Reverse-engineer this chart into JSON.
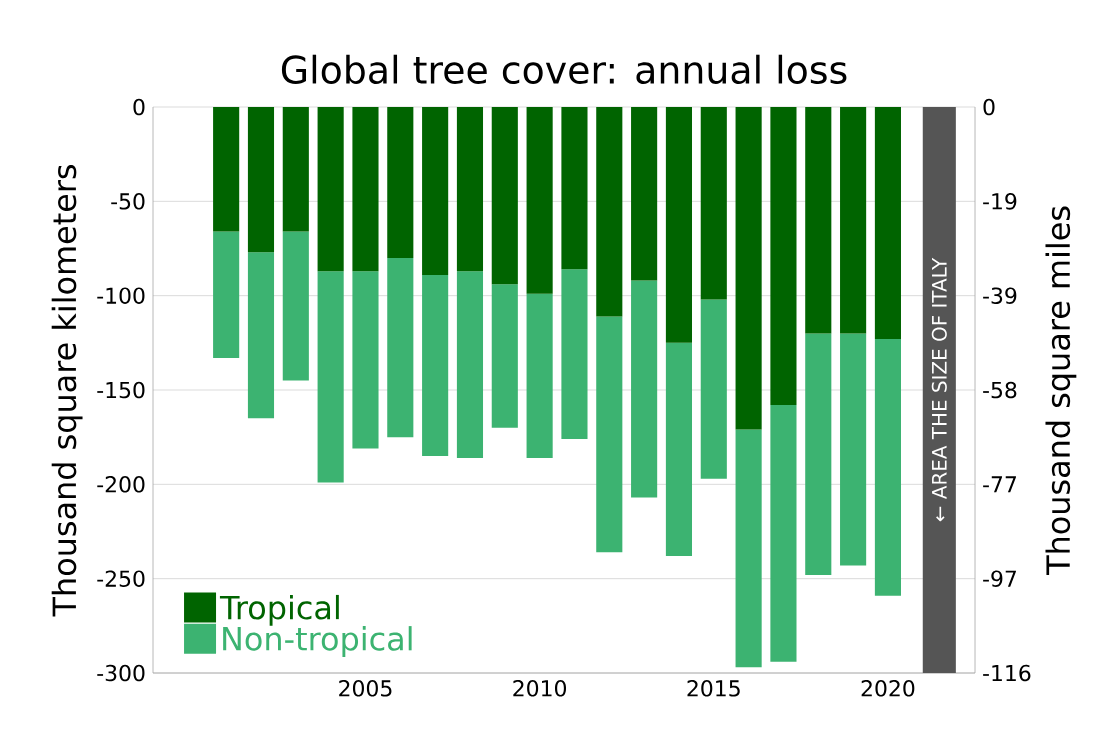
{
  "chart_data": {
    "type": "bar",
    "title": "Global tree cover: annual loss",
    "ylabel": "Thousand square kilometers",
    "y2label": "Thousand square miles",
    "x": [
      2001,
      2002,
      2003,
      2004,
      2005,
      2006,
      2007,
      2008,
      2009,
      2010,
      2011,
      2012,
      2013,
      2014,
      2015,
      2016,
      2017,
      2018,
      2019,
      2020
    ],
    "stacked": true,
    "series": [
      {
        "name": "Tropical",
        "color": "#006400",
        "values": [
          -66,
          -77,
          -66,
          -87,
          -87,
          -80,
          -89,
          -87,
          -94,
          -99,
          -86,
          -111,
          -92,
          -125,
          -102,
          -171,
          -158,
          -120,
          -120,
          -123
        ]
      },
      {
        "name": "Non-tropical",
        "color": "#3cb371",
        "values": [
          -67,
          -88,
          -79,
          -112,
          -94,
          -95,
          -96,
          -99,
          -76,
          -87,
          -90,
          -125,
          -115,
          -113,
          -95,
          -126,
          -136,
          -128,
          -123,
          -136
        ]
      }
    ],
    "xlim": [
      1998.9,
      2022.5
    ],
    "xticks": [
      2005,
      2010,
      2015,
      2020
    ],
    "ylim": [
      -300,
      0
    ],
    "yticks": [
      -300,
      -250,
      -200,
      -150,
      -100,
      -50,
      0
    ],
    "y2lim": [
      -115.83,
      0
    ],
    "y2ticks": [
      {
        "value": -115.83,
        "label": "-116"
      },
      {
        "value": -96.53,
        "label": "-97"
      },
      {
        "value": -77.22,
        "label": "-77"
      },
      {
        "value": -57.92,
        "label": "-58"
      },
      {
        "value": -38.61,
        "label": "-39"
      },
      {
        "value": -19.31,
        "label": "-19"
      },
      0
    ],
    "bands": [
      {
        "axis": "x",
        "from": 2021.0,
        "to": 2021.95,
        "label": "← AREA THE SIZE OF ITALY",
        "color": "#555555"
      }
    ],
    "grid": "y",
    "legend": "bottom left"
  }
}
